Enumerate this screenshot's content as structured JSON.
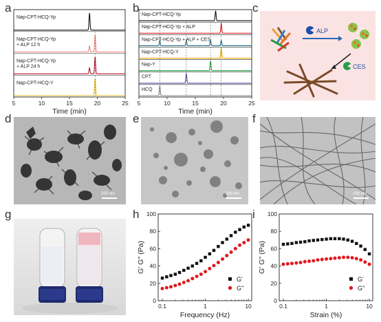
{
  "panels": {
    "a": {
      "letter": "a"
    },
    "b": {
      "letter": "b"
    },
    "c": {
      "letter": "c"
    },
    "d": {
      "letter": "d"
    },
    "e": {
      "letter": "e"
    },
    "f": {
      "letter": "f"
    },
    "g": {
      "letter": "g"
    },
    "h": {
      "letter": "h"
    },
    "i": {
      "letter": "i"
    }
  },
  "scheme_c": {
    "alp_label": "ALP",
    "ces_label": "CES"
  },
  "tem": {
    "d_scale": "200 nm",
    "e_scale": "200 nm",
    "f_scale": "200 nm"
  },
  "chart_data": [
    {
      "id": "a",
      "type": "line",
      "xlabel": "Time (min)",
      "xlim": [
        5,
        25
      ],
      "xticks": [
        5,
        10,
        15,
        20,
        25
      ],
      "traces": [
        {
          "name": "Nap-CPT-HCQ-Yp",
          "color": "#111111",
          "peaks": [
            18.6
          ]
        },
        {
          "name": "Nap-CPT-HCQ-Yp\n+ ALP 12 h",
          "color": "#f0847c",
          "peaks": [
            18.6,
            19.6
          ]
        },
        {
          "name": "Nap-CPT-HCQ-Yp\n+ ALP 24 h",
          "color": "#b0142c",
          "peaks": [
            18.6,
            19.6
          ]
        },
        {
          "name": "Nap-CPT-HCQ-Y",
          "color": "#e5b81c",
          "peaks": [
            19.6
          ]
        }
      ]
    },
    {
      "id": "b",
      "type": "line",
      "xlabel": "Time (min)",
      "xlim": [
        5,
        25
      ],
      "xticks": [
        5,
        10,
        15,
        20,
        25
      ],
      "traces": [
        {
          "name": "Nap-CPT-HCQ-Yp",
          "color": "#111111",
          "peaks": [
            18.6
          ]
        },
        {
          "name": "Nap-CPT-HCQ-Yp + ALP",
          "color": "#d9202a",
          "peaks": [
            19.6
          ]
        },
        {
          "name": "Nap-CPT-HCQ-Yp + ALP + CES",
          "color": "#1f6e8c",
          "peaks": [
            8.7,
            13.4,
            17.7,
            19.6
          ]
        },
        {
          "name": "Nap-CPT-HCQ-Y",
          "color": "#f0a800",
          "peaks": [
            19.6
          ]
        },
        {
          "name": "Nap-Y",
          "color": "#1aa83c",
          "peaks": [
            17.7
          ]
        },
        {
          "name": "CPT",
          "color": "#5a4aa0",
          "peaks": [
            13.4
          ]
        },
        {
          "name": "HCQ",
          "color": "#888888",
          "peaks": [
            8.7
          ]
        }
      ]
    },
    {
      "id": "h",
      "type": "scatter",
      "xlabel": "Frequency (Hz)",
      "ylabel": "G' G'' (Pa)",
      "xscale": "log",
      "xlim": [
        0.08,
        12
      ],
      "ylim": [
        0,
        100
      ],
      "xticks": [
        0.1,
        1,
        10
      ],
      "xtick_labels": [
        "0.1",
        "1",
        "10"
      ],
      "yticks": [
        0,
        20,
        40,
        60,
        80,
        100
      ],
      "legend": "bottom-right",
      "series": [
        {
          "name": "G'",
          "color": "#111111",
          "marker": "square",
          "x": [
            0.1,
            0.126,
            0.158,
            0.2,
            0.251,
            0.316,
            0.398,
            0.501,
            0.631,
            0.794,
            1.0,
            1.26,
            1.58,
            2.0,
            2.51,
            3.16,
            3.98,
            5.01,
            6.31,
            7.94,
            10.0
          ],
          "values": [
            26,
            27.5,
            29,
            30.5,
            32.5,
            35,
            37.5,
            40,
            43,
            46,
            50,
            54,
            58,
            62.5,
            67,
            71,
            75,
            79,
            82,
            85,
            87
          ]
        },
        {
          "name": "G''",
          "color": "#e0191f",
          "marker": "circle",
          "x": [
            0.1,
            0.126,
            0.158,
            0.2,
            0.251,
            0.316,
            0.398,
            0.501,
            0.631,
            0.794,
            1.0,
            1.26,
            1.58,
            2.0,
            2.51,
            3.16,
            3.98,
            5.01,
            6.31,
            7.94,
            10.0
          ],
          "values": [
            14,
            15,
            16,
            17.5,
            19,
            21,
            23,
            25.5,
            28,
            30.5,
            33.5,
            37,
            40.5,
            44,
            48,
            52,
            56,
            60,
            64,
            67,
            70
          ]
        }
      ]
    },
    {
      "id": "i",
      "type": "scatter",
      "xlabel": "Strain (%)",
      "ylabel": "G' G'' (Pa)",
      "xscale": "log",
      "xlim": [
        0.08,
        12
      ],
      "ylim": [
        0,
        100
      ],
      "xticks": [
        0.1,
        1,
        10
      ],
      "xtick_labels": [
        "0.1",
        "1",
        "10"
      ],
      "yticks": [
        0,
        20,
        40,
        60,
        80,
        100
      ],
      "legend": "bottom-right",
      "series": [
        {
          "name": "G'",
          "color": "#111111",
          "marker": "square",
          "x": [
            0.1,
            0.126,
            0.158,
            0.2,
            0.251,
            0.316,
            0.398,
            0.501,
            0.631,
            0.794,
            1.0,
            1.26,
            1.58,
            2.0,
            2.51,
            3.16,
            3.98,
            5.01,
            6.31,
            7.94,
            10.0
          ],
          "values": [
            65,
            65.5,
            66,
            67,
            67.5,
            68,
            69,
            69.5,
            70,
            70.5,
            71,
            71.5,
            71.5,
            71.5,
            71,
            70,
            68.5,
            66,
            63,
            59,
            54
          ]
        },
        {
          "name": "G''",
          "color": "#e0191f",
          "marker": "circle",
          "x": [
            0.1,
            0.126,
            0.158,
            0.2,
            0.251,
            0.316,
            0.398,
            0.501,
            0.631,
            0.794,
            1.0,
            1.26,
            1.58,
            2.0,
            2.51,
            3.16,
            3.98,
            5.01,
            6.31,
            7.94,
            10.0
          ],
          "values": [
            42,
            42.5,
            43,
            43.5,
            44,
            45,
            45.5,
            46,
            47,
            47.5,
            48,
            48.5,
            49,
            49.5,
            50,
            50,
            49.5,
            48.5,
            47,
            44.5,
            42
          ]
        }
      ]
    }
  ]
}
